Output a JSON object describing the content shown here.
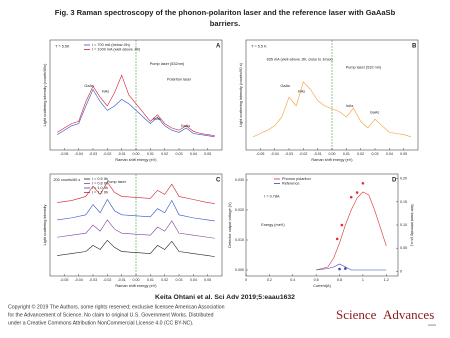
{
  "header": {
    "title_lines": [
      "Fig. 3 Raman spectroscopy of the phonon-polariton laser and the reference laser with GaAaSb",
      "barriers."
    ]
  },
  "panels": [
    {
      "label": "A",
      "xlabel": "Raman shift energy (eV)",
      "ylabel": "Light scattering intensity (counts/60s)",
      "xlim": [
        -0.06,
        0.06
      ],
      "ylim": [
        0,
        100
      ],
      "xticks": [
        -0.05,
        -0.04,
        -0.03,
        -0.02,
        -0.01,
        {
          "value": 0,
          "label": "0.00"
        },
        0.01,
        0.02,
        0.03,
        0.04,
        0.05
      ],
      "annotations": [
        "T = 5.5K",
        "Pump laser (532nm)",
        "Polariton laser",
        "GaAs",
        "InAs",
        "InAs",
        "GaAs"
      ],
      "series": [
        {
          "name": "I = 700 mA (below Jth)",
          "color": "#3050c8",
          "x": [
            -0.055,
            -0.05,
            -0.045,
            -0.04,
            -0.035,
            -0.03,
            -0.025,
            -0.02,
            -0.015,
            -0.01,
            -0.005,
            0.005,
            0.01,
            0.015,
            0.02,
            0.025,
            0.03,
            0.035,
            0.04,
            0.045,
            0.05,
            0.055
          ],
          "values": [
            14,
            18,
            22,
            24,
            40,
            55,
            44,
            36,
            40,
            46,
            42,
            30,
            24,
            30,
            22,
            18,
            16,
            20,
            15,
            14,
            13,
            12
          ]
        },
        {
          "name": "I = 1000 mA (well-above Jth)",
          "color": "#d02030",
          "x": [
            -0.055,
            -0.05,
            -0.045,
            -0.04,
            -0.035,
            -0.03,
            -0.025,
            -0.02,
            -0.015,
            -0.01,
            -0.005,
            0.005,
            0.01,
            0.015,
            0.02,
            0.025,
            0.03,
            0.035,
            0.04,
            0.045,
            0.05,
            0.055
          ],
          "values": [
            16,
            20,
            24,
            26,
            44,
            58,
            48,
            40,
            52,
            68,
            50,
            34,
            26,
            32,
            24,
            20,
            18,
            22,
            17,
            15,
            14,
            13
          ]
        }
      ]
    },
    {
      "label": "B",
      "xlabel": "Raman shift energy (eV)",
      "ylabel": "Light scattering intensity (counts/60 s)",
      "xlim": [
        -0.06,
        0.06
      ],
      "ylim": [
        0,
        100
      ],
      "xticks": [
        -0.05,
        -0.04,
        -0.03,
        -0.02,
        -0.01,
        {
          "value": 0,
          "label": "0.00"
        },
        0.01,
        0.02,
        0.03,
        0.04,
        0.05
      ],
      "annotations": [
        "T = 5.5 K",
        "835 mA (well-above Jth, close to Jmax)",
        "Pump laser (532 nm)",
        "GaAs",
        "InAs",
        "InAs",
        "GaAs"
      ],
      "series": [
        {
          "color": "#f0a030",
          "x": [
            -0.055,
            -0.05,
            -0.045,
            -0.04,
            -0.035,
            -0.03,
            -0.025,
            -0.02,
            -0.015,
            -0.01,
            -0.005,
            0.005,
            0.01,
            0.015,
            0.02,
            0.025,
            0.03,
            0.035,
            0.04,
            0.045,
            0.05,
            0.055
          ],
          "values": [
            12,
            15,
            18,
            22,
            30,
            48,
            40,
            62,
            55,
            45,
            40,
            35,
            30,
            38,
            26,
            20,
            28,
            22,
            16,
            15,
            14,
            12
          ]
        }
      ]
    },
    {
      "label": "C",
      "xlabel": "Raman shift energy (eV)",
      "ylabel": "Light scattering intensity",
      "xlim": [
        -0.06,
        0.06
      ],
      "ylim": [
        0,
        100
      ],
      "xticks": [
        -0.05,
        -0.04,
        -0.03,
        -0.02,
        -0.01,
        {
          "value": 0,
          "label": "0.00"
        },
        0.01,
        0.02,
        0.03,
        0.04,
        0.05
      ],
      "annotations": [
        "200 counts/60 s",
        "Pump laser"
      ],
      "series": [
        {
          "name": "I = 0.5 Ith",
          "color": "#202020",
          "x": [
            -0.055,
            -0.045,
            -0.035,
            -0.03,
            -0.025,
            -0.02,
            -0.015,
            -0.01,
            0.01,
            0.015,
            0.02,
            0.025,
            0.03,
            0.04,
            0.05,
            0.055
          ],
          "values": [
            20,
            22,
            24,
            30,
            26,
            35,
            28,
            24,
            22,
            30,
            26,
            34,
            24,
            22,
            20,
            19
          ]
        },
        {
          "name": "I = 0.8 Ith",
          "color": "#8040a0",
          "x": [
            -0.055,
            -0.045,
            -0.035,
            -0.03,
            -0.025,
            -0.02,
            -0.015,
            -0.01,
            0.01,
            0.015,
            0.02,
            0.025,
            0.03,
            0.04,
            0.05,
            0.055
          ],
          "values": [
            38,
            40,
            42,
            50,
            44,
            55,
            46,
            42,
            40,
            48,
            44,
            54,
            42,
            40,
            38,
            37
          ]
        },
        {
          "name": "I = 1.0 Ith",
          "color": "#3050c8",
          "x": [
            -0.055,
            -0.045,
            -0.035,
            -0.03,
            -0.025,
            -0.02,
            -0.015,
            -0.01,
            0.01,
            0.015,
            0.02,
            0.025,
            0.03,
            0.04,
            0.05,
            0.055
          ],
          "values": [
            55,
            57,
            60,
            70,
            62,
            75,
            64,
            60,
            58,
            66,
            62,
            74,
            60,
            57,
            55,
            54
          ]
        },
        {
          "name": "I = 1.2 Ith",
          "color": "#d02030",
          "x": [
            -0.055,
            -0.045,
            -0.035,
            -0.03,
            -0.025,
            -0.02,
            -0.015,
            -0.01,
            0.01,
            0.015,
            0.02,
            0.025,
            0.03,
            0.04,
            0.05,
            0.055
          ],
          "values": [
            72,
            74,
            78,
            88,
            80,
            92,
            82,
            78,
            76,
            84,
            80,
            90,
            78,
            75,
            72,
            71
          ]
        }
      ]
    },
    {
      "label": "D",
      "xlabel": "Current(A)",
      "ylabel": "Detector output voltage (V)",
      "y2label": "Side band intensity (a.u.)",
      "xlim": [
        0,
        1.3
      ],
      "ylim": [
        -0.002,
        0.032
      ],
      "y2lim": [
        -0.01,
        0.21
      ],
      "xticks": [
        0,
        0.2,
        0.4,
        0.6,
        0.8,
        1,
        1.2
      ],
      "yticks": [
        {
          "value": 0,
          "label": "0.000"
        },
        {
          "value": 0.01,
          "label": "0.010"
        },
        {
          "value": 0.02,
          "label": "0.020"
        },
        {
          "value": 0.03,
          "label": "0.030"
        }
      ],
      "y2ticks": [
        0,
        0.05,
        {
          "value": 0.1,
          "label": "0.10"
        },
        0.15,
        {
          "value": 0.2,
          "label": "0.20"
        }
      ],
      "annotations": [
        "I = 0.78A",
        "Energy (meV)"
      ],
      "series": [
        {
          "name": "Phonon polariton",
          "color": "#e03030",
          "x": [
            0.6,
            0.7,
            0.75,
            0.8,
            0.85,
            0.9,
            0.95,
            1,
            1.05,
            1.1,
            1.15,
            1.2
          ],
          "values": [
            0,
            0.001,
            0.004,
            0.009,
            0.015,
            0.02,
            0.024,
            0.026,
            0.025,
            0.02,
            0.014,
            0.008
          ]
        },
        {
          "name": "Reference",
          "color": "#3040c0",
          "x": [
            0.6,
            0.7,
            0.75,
            0.8,
            0.85,
            0.9,
            1,
            1.2
          ],
          "values": [
            0,
            0.0005,
            0.001,
            0.002,
            0.001,
            0,
            0,
            0
          ]
        },
        {
          "color": "#e03030",
          "mode": "scatter",
          "axis": "y2",
          "x": [
            0.78,
            0.82,
            0.9,
            0.95,
            1
          ],
          "values": [
            0.07,
            0.1,
            0.16,
            0.17,
            0.19
          ]
        },
        {
          "color": "#3040c0",
          "mode": "scatter",
          "axis": "y2",
          "x": [
            0.8,
            0.85
          ],
          "values": [
            0.005,
            0.006
          ]
        }
      ]
    }
  ],
  "citation": "Keita Ohtani et al. Sci Adv 2019;5:eaau1632",
  "copyright": [
    "Copyright © 2019 The Authors, some rights reserved; exclusive licensee American Association",
    "for the Advancement of Science. No claim to original U.S. Government Works. Distributed",
    "under a Creative Commons Attribution NonCommercial License 4.0 (CC BY-NC)."
  ],
  "logo": {
    "science": "Science",
    "advances": "Advances",
    "aaas": "AAAS"
  }
}
